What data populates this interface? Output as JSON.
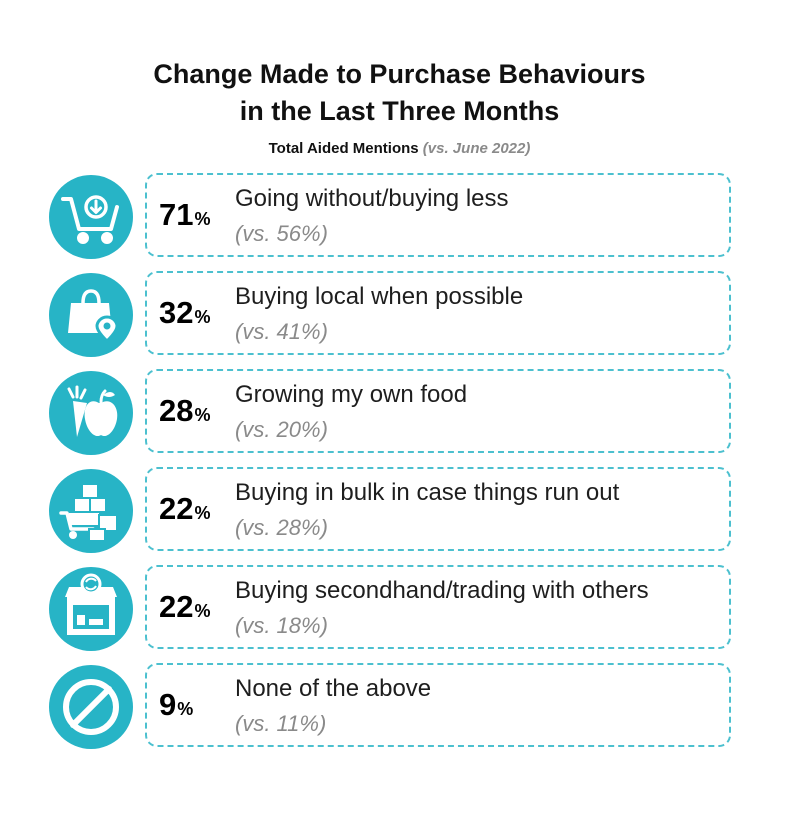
{
  "title_line1": "Change Made to Purchase Behaviours",
  "title_line2": "in the Last Three Months",
  "subtitle": "Total Aided Mentions",
  "subtitle_compare": "(vs. June 2022)",
  "accent_color": "#27b4c6",
  "chart_data": {
    "type": "table",
    "title": "Change Made to Purchase Behaviours in the Last Three Months",
    "subtitle": "Total Aided Mentions (vs. June 2022)",
    "rows": [
      {
        "icon": "shopping-cart-icon",
        "value": 71,
        "value_text": "71",
        "label": "Going without/buying less",
        "compare_value": 56,
        "compare_text": "(vs. 56%)"
      },
      {
        "icon": "shopping-bag-location-icon",
        "value": 32,
        "value_text": "32",
        "label": "Buying local when possible",
        "compare_value": 41,
        "compare_text": "(vs. 41%)"
      },
      {
        "icon": "apple-carrot-icon",
        "value": 28,
        "value_text": "28",
        "label": "Growing my own food",
        "compare_value": 20,
        "compare_text": "(vs. 20%)"
      },
      {
        "icon": "bulk-boxes-cart-icon",
        "value": 22,
        "value_text": "22",
        "label": "Buying in bulk in case things run out",
        "compare_value": 28,
        "compare_text": "(vs. 28%)"
      },
      {
        "icon": "secondhand-store-icon",
        "value": 22,
        "value_text": "22",
        "label": "Buying secondhand/trading with others",
        "compare_value": 18,
        "compare_text": "(vs. 18%)"
      },
      {
        "icon": "no-symbol-icon",
        "value": 9,
        "value_text": "9",
        "label": "None of the above",
        "compare_value": 11,
        "compare_text": "(vs. 11%)"
      }
    ],
    "percent_symbol": "%"
  }
}
